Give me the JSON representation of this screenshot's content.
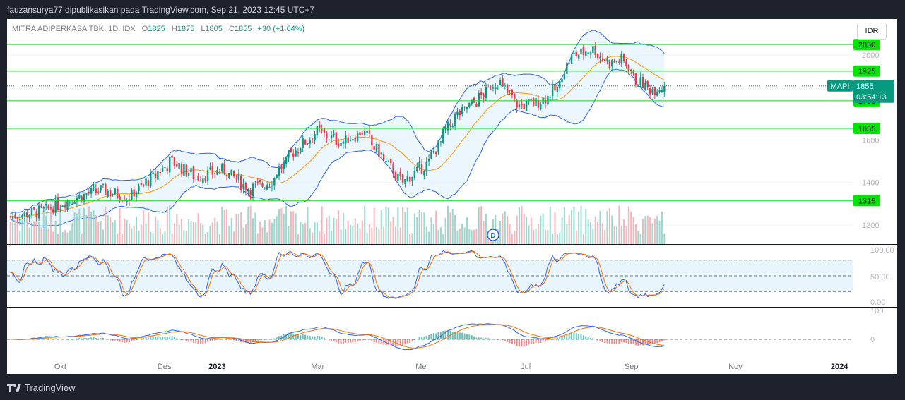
{
  "header": {
    "publish_line": "fauzansurya77 dipublikasikan pada TradingView.com, Sep 21, 2023 12:45 UTC+7"
  },
  "legend": {
    "symbol_line": "MITRA ADIPERKASA TBK, 1D, IDX",
    "open_label": "O",
    "open": "1825",
    "high_label": "H",
    "high": "1875",
    "low_label": "L",
    "low": "1805",
    "close_label": "C",
    "close": "1855",
    "change": "+30 (+1.64%)"
  },
  "currency_button": "IDR",
  "footer": {
    "brand": "TradingView"
  },
  "colors": {
    "up": "#089981",
    "down": "#f23645",
    "level_line": "#00e600",
    "level_tag": "#00e600",
    "bollinger": "#2962ff",
    "bollinger_fill": "#e3f2fd",
    "ma": "#ff9800",
    "stoch_k": "#2962ff",
    "stoch_d": "#ff6d00",
    "macd": "#2962ff",
    "signal": "#ff6d00",
    "price_tag": "#089981"
  },
  "icons": {
    "dividend_marker": "D",
    "logo": "tradingview-logo-icon"
  },
  "chart_data": {
    "type": "candlestick",
    "symbol": "MAPI",
    "price_scale": {
      "min": 1110,
      "max": 2170,
      "ticks": [
        2000,
        1600,
        1400,
        1200
      ]
    },
    "time_axis_labels": [
      "Okt",
      "Des",
      "2023",
      "Mar",
      "Mei",
      "Jul",
      "Sep",
      "Nov",
      "2024"
    ],
    "horizontal_levels": [
      2050,
      1925,
      1785,
      1655,
      1315
    ],
    "last_price": {
      "label": "MAPI",
      "value": "1855",
      "countdown": "03:54:13"
    },
    "price_anchors": [
      [
        "2022-09-01",
        1240
      ],
      [
        "2022-09-20",
        1265
      ],
      [
        "2022-10-10",
        1330
      ],
      [
        "2022-10-25",
        1365
      ],
      [
        "2022-11-10",
        1330
      ],
      [
        "2022-11-22",
        1410
      ],
      [
        "2022-12-05",
        1500
      ],
      [
        "2022-12-20",
        1425
      ],
      [
        "2023-01-05",
        1460
      ],
      [
        "2023-01-20",
        1370
      ],
      [
        "2023-02-01",
        1400
      ],
      [
        "2023-02-15",
        1545
      ],
      [
        "2023-03-01",
        1640
      ],
      [
        "2023-03-15",
        1590
      ],
      [
        "2023-03-28",
        1640
      ],
      [
        "2023-04-10",
        1500
      ],
      [
        "2023-04-20",
        1400
      ],
      [
        "2023-05-05",
        1490
      ],
      [
        "2023-05-20",
        1700
      ],
      [
        "2023-06-05",
        1800
      ],
      [
        "2023-06-15",
        1880
      ],
      [
        "2023-06-28",
        1760
      ],
      [
        "2023-07-10",
        1780
      ],
      [
        "2023-07-20",
        1840
      ],
      [
        "2023-07-28",
        1990
      ],
      [
        "2023-08-10",
        2030
      ],
      [
        "2023-08-20",
        1960
      ],
      [
        "2023-08-28",
        1980
      ],
      [
        "2023-09-05",
        1880
      ],
      [
        "2023-09-13",
        1840
      ],
      [
        "2023-09-21",
        1855
      ]
    ],
    "stochastic": {
      "scale_ticks": [
        "100.00",
        "50.00",
        "0.00"
      ],
      "band_upper": 80,
      "band_lower": 20
    },
    "macd": {
      "scale_ticks": [
        "100",
        "0"
      ]
    },
    "dividend_date": "2023-06-13"
  }
}
